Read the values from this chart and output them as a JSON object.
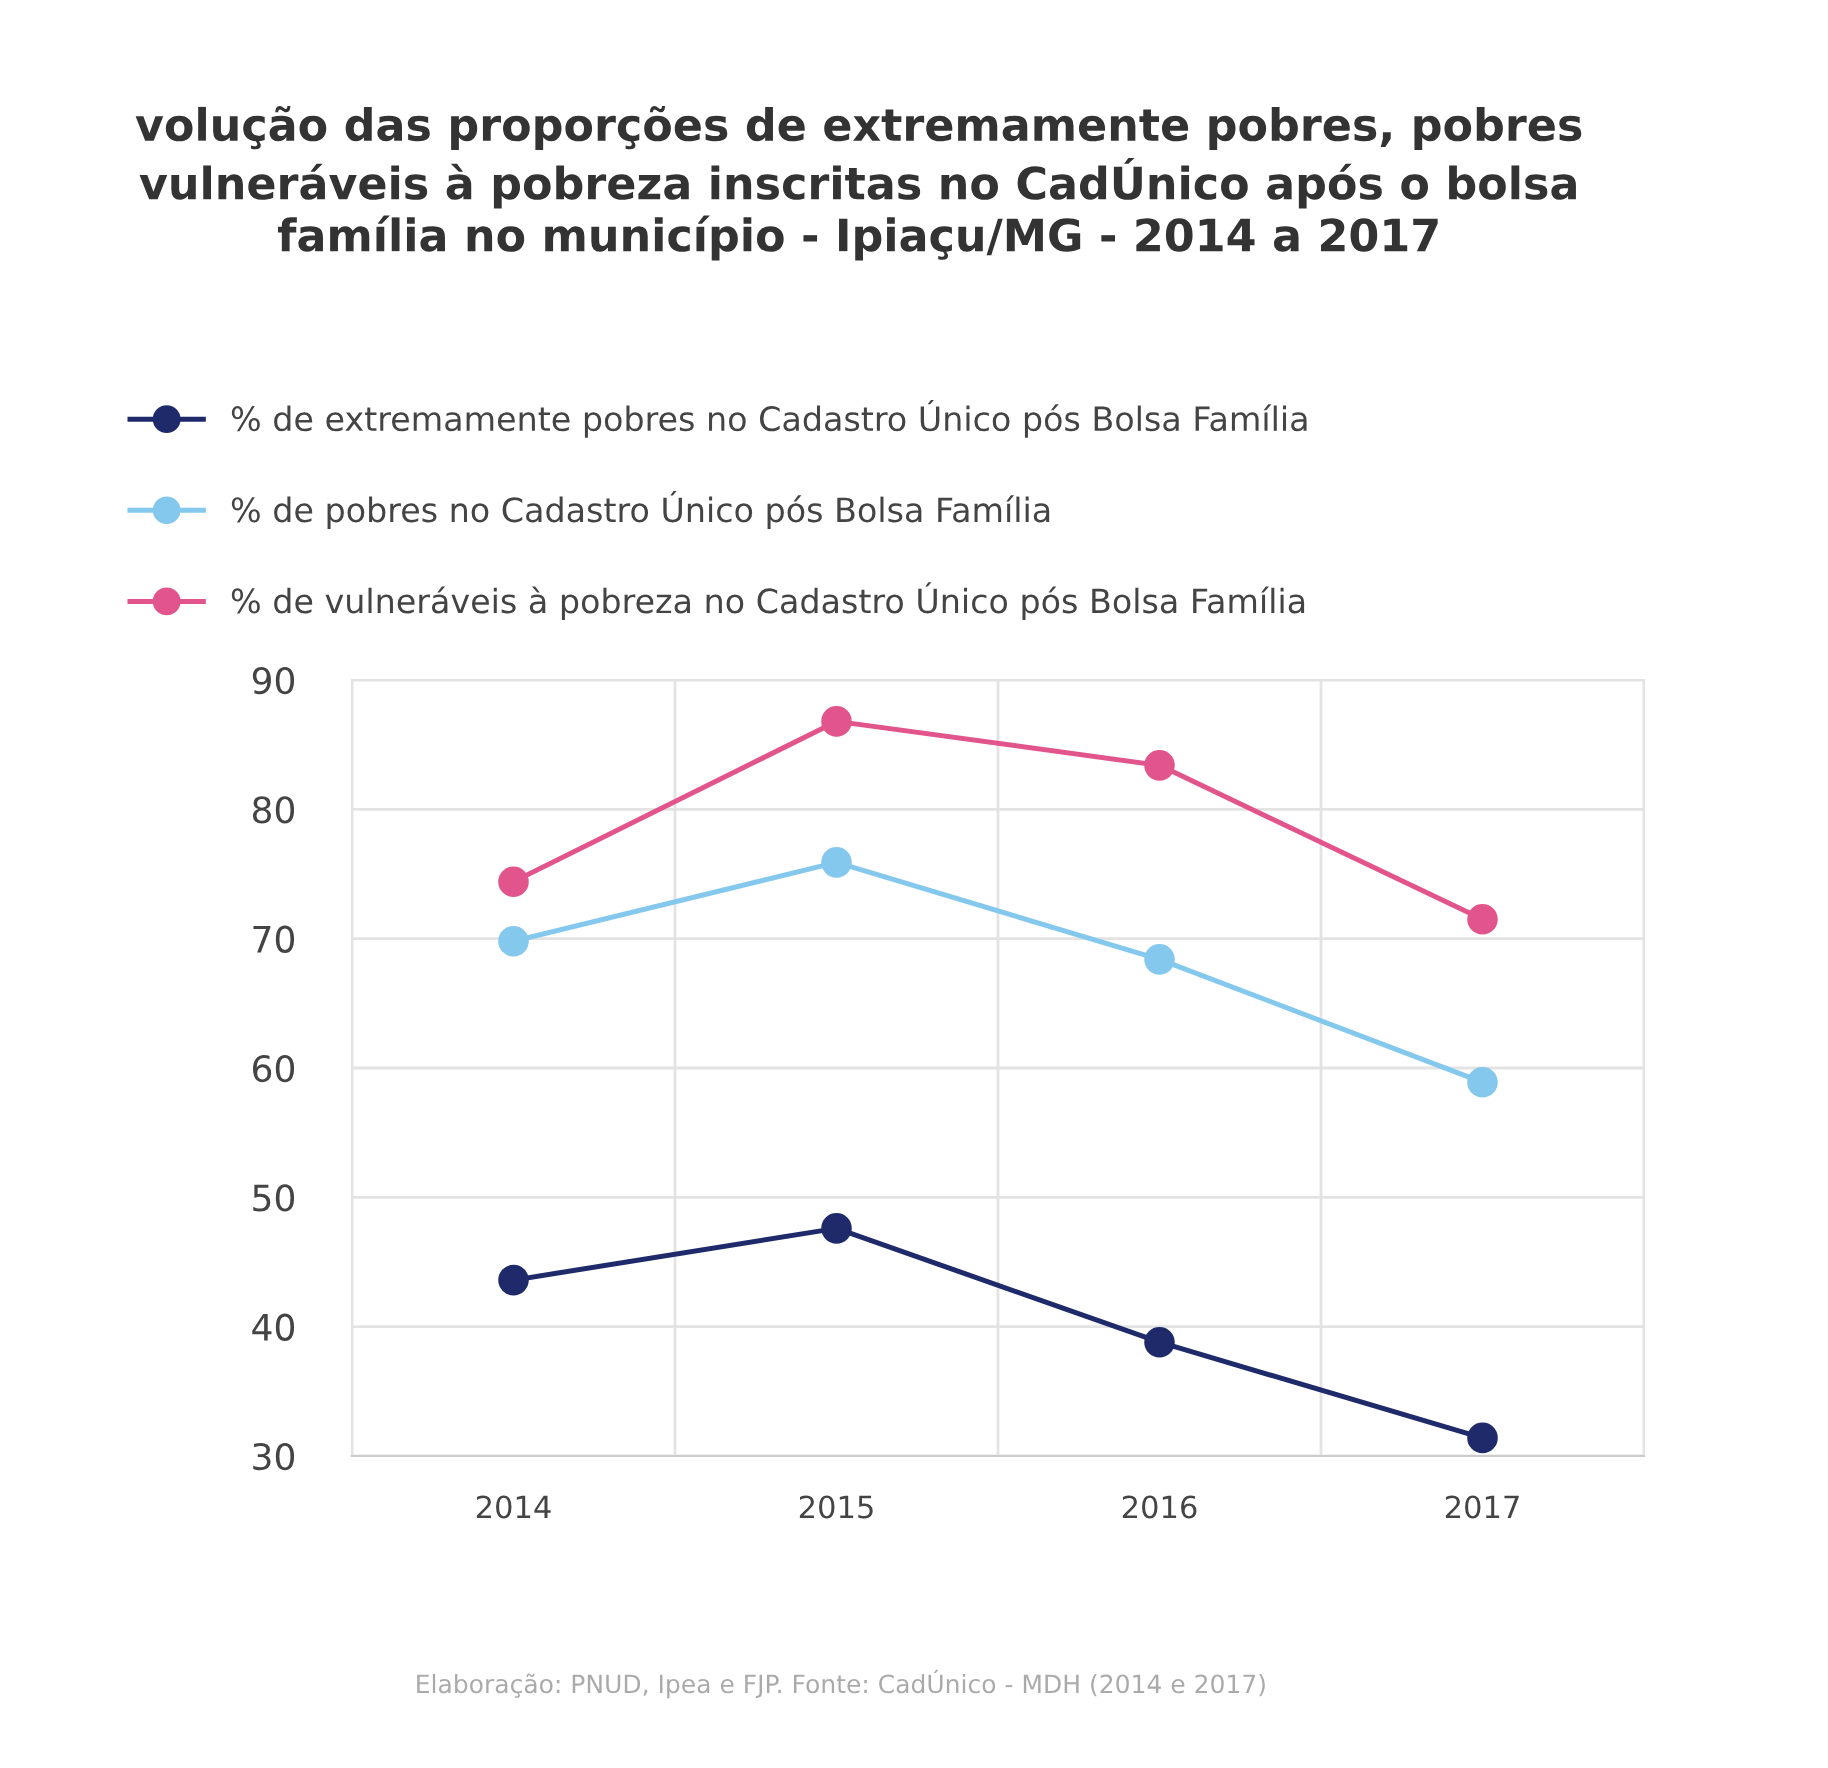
{
  "chart_data": {
    "type": "line",
    "title": "volução das proporções de extremamente pobres, pobres\nvulneráveis à pobreza inscritas no CadÚnico após o bolsa\nfamília no município - Ipiaçu/MG - 2014 a 2017",
    "categories": [
      "2014",
      "2015",
      "2016",
      "2017"
    ],
    "series": [
      {
        "name": "% de extremamente pobres no Cadastro Único pós Bolsa Família",
        "color": "#1f2a6b",
        "values": [
          43.6,
          47.6,
          38.8,
          31.4
        ]
      },
      {
        "name": "% de pobres no Cadastro Único pós Bolsa Família",
        "color": "#85c8ee",
        "values": [
          69.8,
          75.9,
          68.4,
          58.9
        ]
      },
      {
        "name": "% de vulneráveis à pobreza no Cadastro Único pós Bolsa Família",
        "color": "#e2558c",
        "values": [
          74.4,
          86.8,
          83.4,
          71.5
        ]
      }
    ],
    "ylim": [
      30,
      90
    ],
    "yticks": [
      30,
      40,
      50,
      60,
      70,
      80,
      90
    ],
    "grid": true,
    "legend": "top",
    "marker": "circle",
    "line_style": "solid",
    "annotations": [
      "Elaboração: PNUD, Ipea e FJP. Fonte: CadÚnico - MDH (2014 e 2017)"
    ]
  }
}
